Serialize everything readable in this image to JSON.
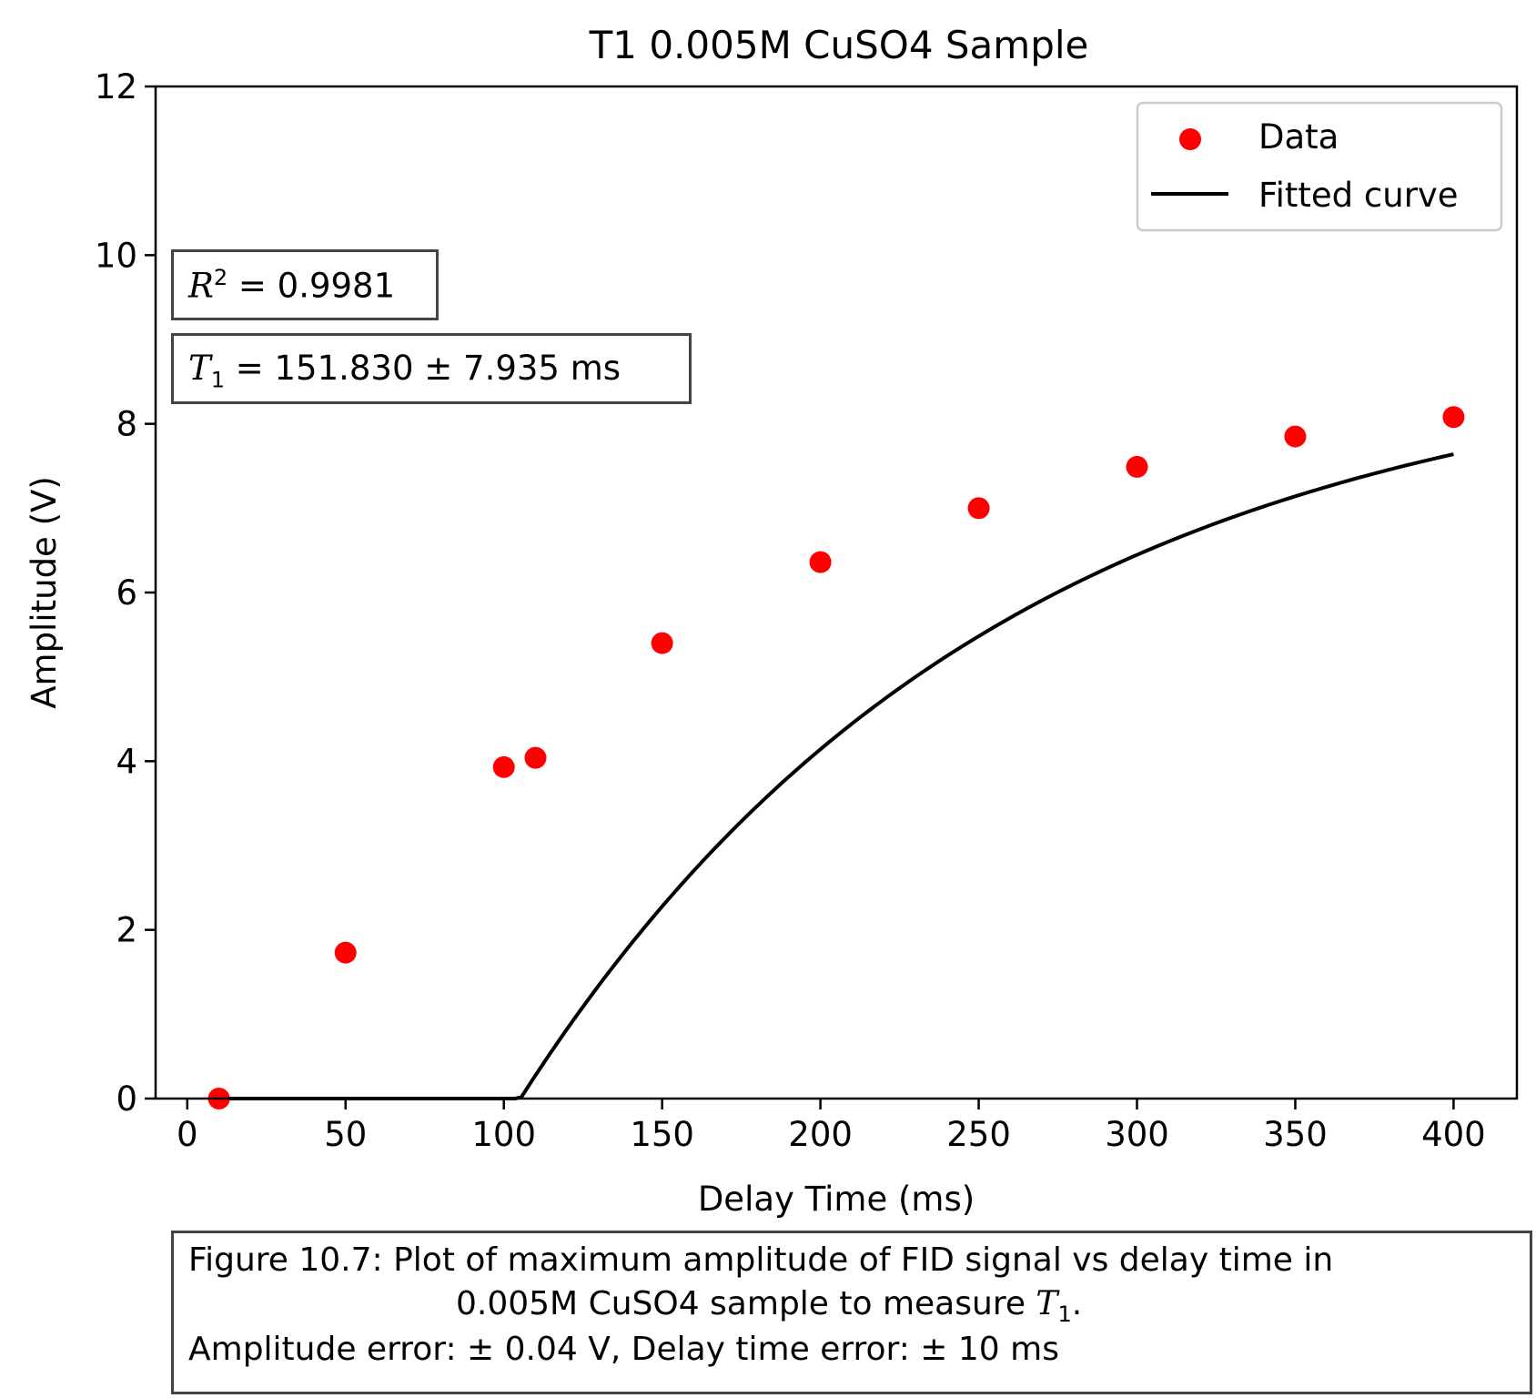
{
  "chart_data": {
    "type": "scatter",
    "title": "T1 0.005M CuSO4 Sample",
    "xlabel": "Delay Time (ms)",
    "ylabel": "Amplitude (V)",
    "xlim": [
      -10,
      420
    ],
    "ylim": [
      0,
      12
    ],
    "xticks": [
      0,
      50,
      100,
      150,
      200,
      250,
      300,
      350,
      400
    ],
    "yticks": [
      0,
      2,
      4,
      6,
      8,
      10,
      12
    ],
    "grid": false,
    "legend_position": "top-right",
    "series": [
      {
        "name": "Data",
        "kind": "scatter",
        "color": "#ff0000",
        "x": [
          10,
          50,
          100,
          110,
          150,
          200,
          250,
          300,
          350,
          400
        ],
        "y": [
          0.0,
          1.73,
          3.93,
          4.04,
          5.4,
          6.36,
          7.0,
          7.49,
          7.85,
          8.08
        ]
      },
      {
        "name": "Fitted curve",
        "kind": "line",
        "color": "#000000",
        "model": "A*(1 - 2*exp(-t/T1))",
        "params": {
          "A": 8.92,
          "T1": 151.83
        },
        "x_range": [
          10,
          400
        ]
      }
    ],
    "annotations": {
      "r2_symbol": "R",
      "r2_sup": "2",
      "r2_text": " = 0.9981",
      "t1_symbol": "T",
      "t1_sub": "1",
      "t1_text": " = 151.830 ± 7.935 ms"
    }
  },
  "caption": {
    "line1": "Figure 10.7: Plot of maximum amplitude of FID signal vs delay time in",
    "line2_text": "0.005M CuSO4 sample to measure ",
    "line2_symbol": "T",
    "line2_sub": "1",
    "line2_end": ".",
    "line3": "Amplitude error: ± 0.04 V, Delay time error: ± 10 ms"
  }
}
